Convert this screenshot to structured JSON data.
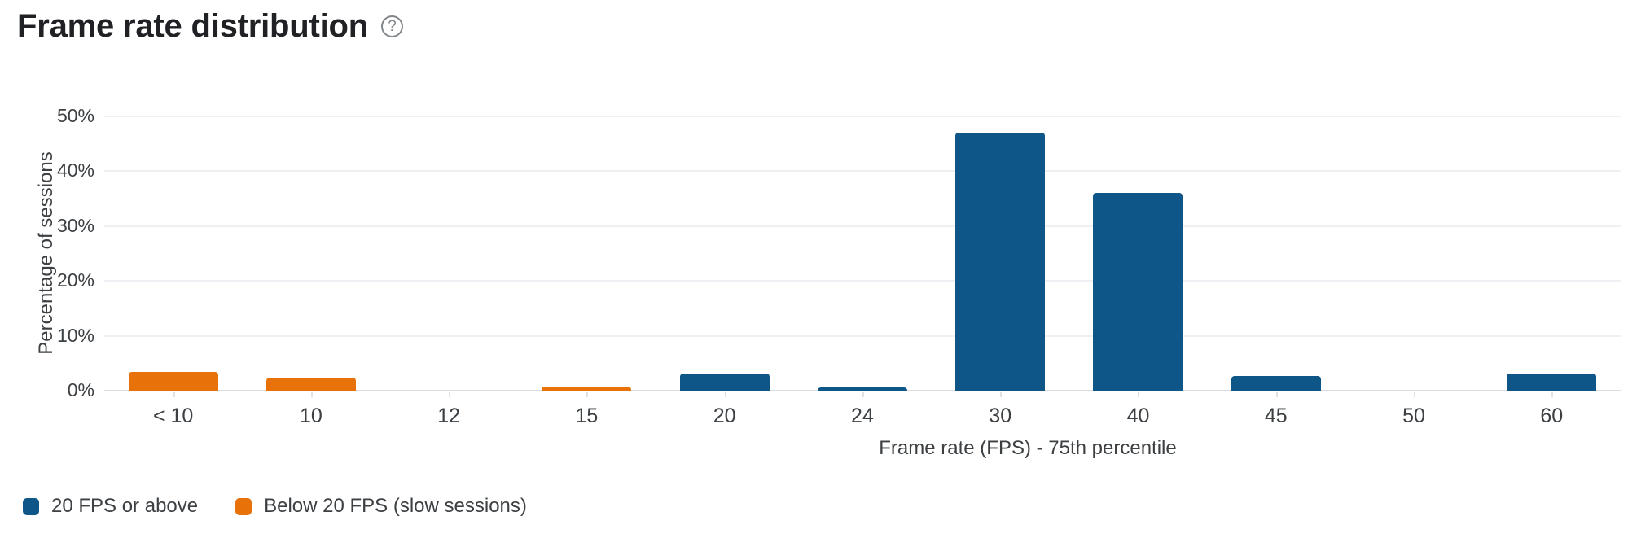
{
  "header": {
    "title": "Frame rate distribution",
    "help_glyph": "?"
  },
  "chart_data": {
    "type": "bar",
    "title": "Frame rate distribution",
    "xlabel": "Frame rate (FPS) - 75th percentile",
    "ylabel": "Percentage of sessions",
    "ylim": [
      0,
      50
    ],
    "yticks": [
      0,
      10,
      20,
      30,
      40,
      50
    ],
    "ytick_labels": [
      "0%",
      "10%",
      "20%",
      "30%",
      "40%",
      "50%"
    ],
    "grid": true,
    "legend_position": "bottom-left",
    "categories": [
      "< 10",
      "10",
      "12",
      "15",
      "20",
      "24",
      "30",
      "40",
      "45",
      "50",
      "60"
    ],
    "values": [
      3.4,
      2.4,
      0,
      0.7,
      3.1,
      0.6,
      47,
      36,
      2.6,
      0,
      3.1
    ],
    "bar_series": [
      "below20",
      "below20",
      "below20",
      "below20",
      "above20",
      "above20",
      "above20",
      "above20",
      "above20",
      "above20",
      "above20"
    ],
    "series": [
      {
        "id": "above20",
        "name": "20 FPS or above",
        "color": "#0d5687"
      },
      {
        "id": "below20",
        "name": "Below 20 FPS (slow sessions)",
        "color": "#e8710a"
      }
    ]
  }
}
